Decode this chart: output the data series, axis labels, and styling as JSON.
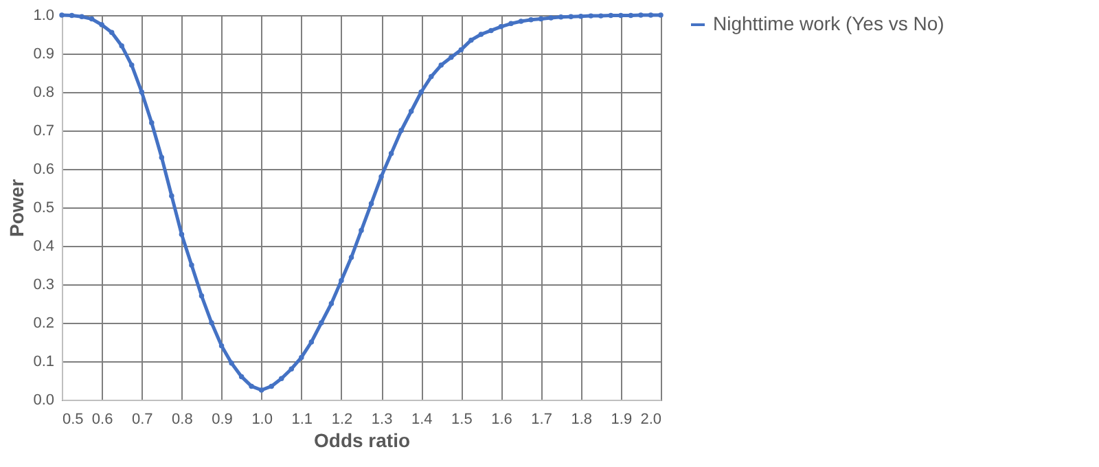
{
  "chart_data": {
    "type": "line",
    "xlabel": "Odds ratio",
    "ylabel": "Power",
    "x": [
      0.5,
      0.525,
      0.55,
      0.575,
      0.6,
      0.625,
      0.65,
      0.675,
      0.7,
      0.725,
      0.75,
      0.775,
      0.8,
      0.825,
      0.85,
      0.875,
      0.9,
      0.925,
      0.95,
      0.975,
      1.0,
      1.025,
      1.05,
      1.075,
      1.1,
      1.125,
      1.15,
      1.175,
      1.2,
      1.225,
      1.25,
      1.275,
      1.3,
      1.325,
      1.35,
      1.375,
      1.4,
      1.425,
      1.45,
      1.475,
      1.5,
      1.525,
      1.55,
      1.575,
      1.6,
      1.625,
      1.65,
      1.675,
      1.7,
      1.725,
      1.75,
      1.775,
      1.8,
      1.825,
      1.85,
      1.875,
      1.9,
      1.925,
      1.95,
      1.975,
      2.0
    ],
    "series": [
      {
        "name": "Nighttime work (Yes vs No)",
        "color": "#4472c4",
        "values": [
          1.0,
          0.999,
          0.996,
          0.99,
          0.975,
          0.955,
          0.92,
          0.87,
          0.8,
          0.72,
          0.63,
          0.53,
          0.43,
          0.35,
          0.27,
          0.2,
          0.14,
          0.095,
          0.06,
          0.035,
          0.025,
          0.035,
          0.055,
          0.08,
          0.11,
          0.15,
          0.2,
          0.25,
          0.31,
          0.37,
          0.44,
          0.51,
          0.58,
          0.64,
          0.7,
          0.75,
          0.8,
          0.84,
          0.87,
          0.89,
          0.91,
          0.935,
          0.95,
          0.96,
          0.97,
          0.978,
          0.984,
          0.988,
          0.99,
          0.993,
          0.995,
          0.996,
          0.997,
          0.998,
          0.998,
          0.999,
          0.999,
          0.999,
          1.0,
          1.0,
          1.0
        ]
      }
    ],
    "xlim": [
      0.5,
      2.0
    ],
    "xticks": [
      0.5,
      0.6,
      0.7,
      0.8,
      0.9,
      {
        "value": 1,
        "label": "1.0"
      },
      1.1,
      1.2,
      1.3,
      1.4,
      1.5,
      1.6,
      1.7,
      1.8,
      1.9,
      {
        "value": 2,
        "label": "2.0"
      }
    ],
    "ylim": [
      0,
      1
    ],
    "yticks": [
      {
        "value": 0,
        "label": "0.0"
      },
      0.1,
      0.2,
      0.3,
      0.4,
      0.5,
      0.6,
      0.7,
      0.8,
      0.9,
      {
        "value": 1,
        "label": "1.0"
      }
    ],
    "grid": true,
    "legend": "right",
    "marker": "circle",
    "line_style": "solid"
  }
}
